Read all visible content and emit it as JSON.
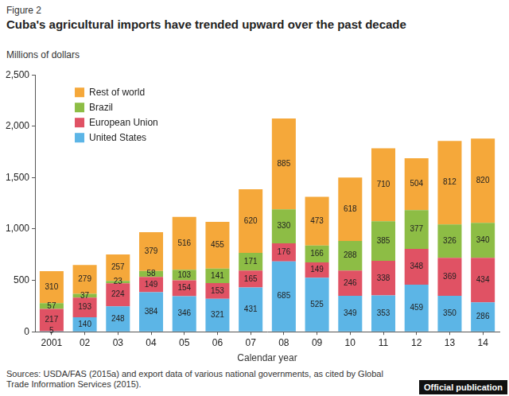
{
  "chart_data": {
    "type": "bar",
    "caption": "Figure 2",
    "title": "Cuba's agricultural imports have trended upward over the past decade",
    "ylabel": "Millions of dollars",
    "xlabel": "Calendar year",
    "source": "Sources: USDA/FAS (2015a) and export data of various national governments, as cited by Global Trade Information Services (2015).",
    "annotations": [
      "Official publication"
    ],
    "categories": [
      "2001",
      "02",
      "03",
      "04",
      "05",
      "06",
      "07",
      "08",
      "09",
      "10",
      "11",
      "12",
      "13",
      "14"
    ],
    "series": [
      {
        "name": "United States",
        "color": "#5cb5e6",
        "values": [
          5,
          140,
          248,
          384,
          346,
          321,
          431,
          685,
          525,
          349,
          353,
          459,
          350,
          286
        ]
      },
      {
        "name": "European Union",
        "color": "#e05264",
        "values": [
          217,
          193,
          224,
          149,
          154,
          153,
          165,
          176,
          149,
          246,
          338,
          348,
          369,
          434
        ]
      },
      {
        "name": "Brazil",
        "color": "#8dbd45",
        "values": [
          57,
          37,
          23,
          58,
          103,
          141,
          171,
          330,
          166,
          288,
          385,
          377,
          326,
          340
        ]
      },
      {
        "name": "Rest of world",
        "color": "#f5a83a",
        "values": [
          310,
          279,
          257,
          379,
          516,
          455,
          620,
          885,
          473,
          618,
          710,
          504,
          812,
          820
        ]
      }
    ],
    "ylim": [
      0,
      2500
    ],
    "yticks": [
      0,
      500,
      {
        "value": 1000,
        "label": "1,000"
      },
      {
        "value": 1500,
        "label": "1,500"
      },
      {
        "value": 2000,
        "label": "2,000"
      },
      {
        "value": 2500,
        "label": "2,500"
      }
    ],
    "stacked": true,
    "data_labels": true,
    "legend": "upper left",
    "grid": false
  }
}
